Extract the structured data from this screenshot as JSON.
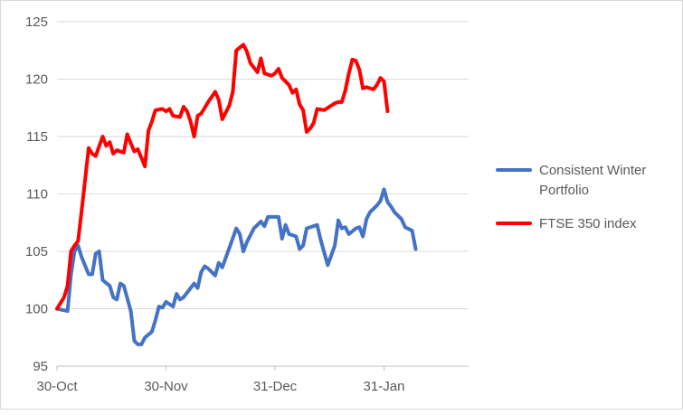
{
  "chart_data": {
    "type": "line",
    "title": "",
    "xlabel": "",
    "ylabel": "",
    "ylim": [
      95,
      125
    ],
    "yticks": [
      95,
      100,
      105,
      110,
      115,
      120,
      125
    ],
    "x_tick_labels": [
      "30-Oct",
      "30-Nov",
      "31-Dec",
      "31-Jan"
    ],
    "x_tick_days": [
      0,
      31,
      62,
      93
    ],
    "xlim_days": [
      0,
      118
    ],
    "grid": {
      "horizontal": true,
      "vertical": false
    },
    "legend_position": "right",
    "series": [
      {
        "name": "Consistent Winter Portfolio",
        "color": "#4472c4",
        "points": [
          [
            0,
            100
          ],
          [
            3,
            99.8
          ],
          [
            4,
            103
          ],
          [
            5,
            105
          ],
          [
            6,
            105.5
          ],
          [
            7,
            104.5
          ],
          [
            9,
            103
          ],
          [
            10,
            103
          ],
          [
            11,
            104.8
          ],
          [
            12,
            105
          ],
          [
            13,
            102.5
          ],
          [
            15,
            102
          ],
          [
            16,
            101
          ],
          [
            17,
            100.8
          ],
          [
            18,
            102.2
          ],
          [
            19,
            102
          ],
          [
            21,
            99.8
          ],
          [
            22,
            97.2
          ],
          [
            23,
            96.9
          ],
          [
            24,
            96.9
          ],
          [
            25,
            97.5
          ],
          [
            27,
            98
          ],
          [
            28,
            99
          ],
          [
            29,
            100.2
          ],
          [
            30,
            100.1
          ],
          [
            31,
            100.6
          ],
          [
            33,
            100.2
          ],
          [
            34,
            101.3
          ],
          [
            35,
            100.8
          ],
          [
            36,
            101
          ],
          [
            38,
            101.8
          ],
          [
            39,
            102.2
          ],
          [
            40,
            101.8
          ],
          [
            41,
            103.2
          ],
          [
            42,
            103.7
          ],
          [
            43,
            103.5
          ],
          [
            45,
            102.9
          ],
          [
            46,
            104
          ],
          [
            47,
            103.6
          ],
          [
            49,
            105.3
          ],
          [
            51,
            107
          ],
          [
            52,
            106.5
          ],
          [
            53,
            105
          ],
          [
            54,
            105.8
          ],
          [
            56,
            107
          ],
          [
            58,
            107.6
          ],
          [
            59,
            107.2
          ],
          [
            60,
            108
          ],
          [
            63,
            108
          ],
          [
            64,
            106.1
          ],
          [
            65,
            107.3
          ],
          [
            66,
            106.5
          ],
          [
            68,
            106.3
          ],
          [
            69,
            105.2
          ],
          [
            70,
            105.5
          ],
          [
            71,
            107
          ],
          [
            74,
            107.3
          ],
          [
            75,
            106
          ],
          [
            77,
            103.8
          ],
          [
            79,
            105.5
          ],
          [
            80,
            107.7
          ],
          [
            81,
            107
          ],
          [
            82,
            107.1
          ],
          [
            83,
            106.5
          ],
          [
            85,
            107
          ],
          [
            86,
            107.1
          ],
          [
            87,
            106.3
          ],
          [
            88,
            107.8
          ],
          [
            89,
            108.4
          ],
          [
            91,
            109
          ],
          [
            92,
            109.4
          ],
          [
            93,
            110.4
          ],
          [
            94,
            109.3
          ],
          [
            95,
            108.9
          ],
          [
            96,
            108.4
          ],
          [
            98,
            107.8
          ],
          [
            99,
            107.1
          ],
          [
            101,
            106.8
          ],
          [
            102,
            105.2
          ]
        ]
      },
      {
        "name": "FTSE 350 index",
        "color": "#ff0000",
        "points": [
          [
            0,
            100
          ],
          [
            2,
            101
          ],
          [
            3,
            102
          ],
          [
            4,
            105
          ],
          [
            5,
            105.5
          ],
          [
            6,
            105.9
          ],
          [
            7,
            108.5
          ],
          [
            9,
            114
          ],
          [
            10,
            113.5
          ],
          [
            11,
            113.3
          ],
          [
            13,
            115
          ],
          [
            14,
            114.2
          ],
          [
            15,
            114.5
          ],
          [
            16,
            113.5
          ],
          [
            17,
            113.8
          ],
          [
            19,
            113.6
          ],
          [
            20,
            115.2
          ],
          [
            21,
            114.4
          ],
          [
            22,
            113.7
          ],
          [
            23,
            113.9
          ],
          [
            25,
            112.4
          ],
          [
            26,
            115.5
          ],
          [
            27,
            116.3
          ],
          [
            28,
            117.3
          ],
          [
            30,
            117.4
          ],
          [
            31,
            117.2
          ],
          [
            32,
            117.4
          ],
          [
            33,
            116.8
          ],
          [
            35,
            116.7
          ],
          [
            36,
            117.6
          ],
          [
            37,
            117.2
          ],
          [
            38,
            116.3
          ],
          [
            39,
            115
          ],
          [
            40,
            116.8
          ],
          [
            41,
            117
          ],
          [
            43,
            118
          ],
          [
            45,
            118.9
          ],
          [
            46,
            118.2
          ],
          [
            47,
            116.5
          ],
          [
            48,
            117.1
          ],
          [
            49,
            117.7
          ],
          [
            50,
            118.9
          ],
          [
            51,
            122.5
          ],
          [
            53,
            123
          ],
          [
            54,
            122.4
          ],
          [
            55,
            121.4
          ],
          [
            56,
            121
          ],
          [
            57,
            120.6
          ],
          [
            58,
            121.8
          ],
          [
            59,
            120.5
          ],
          [
            61,
            120.3
          ],
          [
            62,
            120.5
          ],
          [
            63,
            120.9
          ],
          [
            64,
            120.1
          ],
          [
            66,
            119.5
          ],
          [
            67,
            118.8
          ],
          [
            68,
            119.1
          ],
          [
            69,
            117.8
          ],
          [
            70,
            117.3
          ],
          [
            71,
            115.4
          ],
          [
            72,
            115.7
          ],
          [
            73,
            116.2
          ],
          [
            74,
            117.4
          ],
          [
            76,
            117.3
          ],
          [
            77,
            117.5
          ],
          [
            79,
            117.9
          ],
          [
            80,
            118
          ],
          [
            81,
            118
          ],
          [
            82,
            119
          ],
          [
            83,
            120.5
          ],
          [
            84,
            121.7
          ],
          [
            85,
            121.6
          ],
          [
            86,
            120.8
          ],
          [
            87,
            119.2
          ],
          [
            88,
            119.3
          ],
          [
            90,
            119.1
          ],
          [
            91,
            119.5
          ],
          [
            92,
            120.1
          ],
          [
            93,
            119.8
          ],
          [
            94,
            117.2
          ]
        ]
      }
    ]
  }
}
